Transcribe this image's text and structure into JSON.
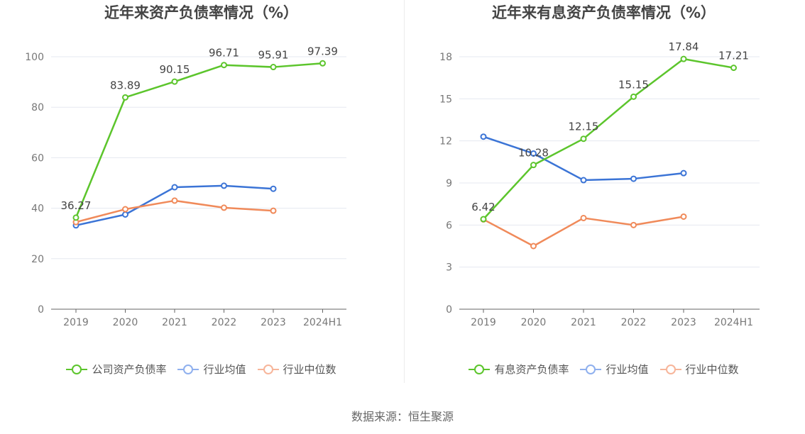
{
  "colors": {
    "company": "#5cc52c",
    "industry_avg": "#3b74d6",
    "industry_median": "#f08a5a",
    "legend_avg": "#8fb0ee",
    "legend_median": "#f7b59a",
    "grid": "#e5e8f0",
    "axis": "#666666",
    "tick_text": "#777777",
    "label_text": "#444444"
  },
  "source": "数据来源：恒生聚源",
  "chart_data": [
    {
      "type": "line",
      "title": "近年来资产负债率情况（%）",
      "categories": [
        "2019",
        "2020",
        "2021",
        "2022",
        "2023",
        "2024H1"
      ],
      "ylim": [
        0,
        100
      ],
      "yticks": [
        "0",
        "20",
        "40",
        "60",
        "80",
        "100"
      ],
      "yticks_values": [
        0,
        20,
        40,
        60,
        80,
        100
      ],
      "grid": true,
      "legend_position": "bottom",
      "series": [
        {
          "name": "公司资产负债率",
          "key": "company",
          "values": [
            36.27,
            83.89,
            90.15,
            96.71,
            95.91,
            97.39
          ],
          "labels": [
            "36.27",
            "83.89",
            "90.15",
            "96.71",
            "95.91",
            "97.39"
          ]
        },
        {
          "name": "行业均值",
          "key": "industry_avg",
          "values": [
            33.2,
            37.5,
            48.3,
            48.9,
            47.7,
            null
          ]
        },
        {
          "name": "行业中位数",
          "key": "industry_median",
          "values": [
            34.5,
            39.6,
            43.0,
            40.2,
            39.0,
            null
          ]
        }
      ]
    },
    {
      "type": "line",
      "title": "近年来有息资产负债率情况（%）",
      "categories": [
        "2019",
        "2020",
        "2021",
        "2022",
        "2023",
        "2024H1"
      ],
      "ylim": [
        0,
        18
      ],
      "yticks": [
        "0",
        "3",
        "6",
        "9",
        "12",
        "15",
        "18"
      ],
      "yticks_values": [
        0,
        3,
        6,
        9,
        12,
        15,
        18
      ],
      "grid": true,
      "legend_position": "bottom",
      "series": [
        {
          "name": "有息资产负债率",
          "key": "company",
          "values": [
            6.42,
            10.28,
            12.15,
            15.15,
            17.84,
            17.21
          ],
          "labels": [
            "6.42",
            "10.28",
            "12.15",
            "15.15",
            "17.84",
            "17.21"
          ]
        },
        {
          "name": "行业均值",
          "key": "industry_avg",
          "values": [
            12.3,
            11.1,
            9.2,
            9.3,
            9.7,
            null
          ]
        },
        {
          "name": "行业中位数",
          "key": "industry_median",
          "values": [
            6.4,
            4.5,
            6.5,
            6.0,
            6.6,
            null
          ]
        }
      ]
    }
  ]
}
